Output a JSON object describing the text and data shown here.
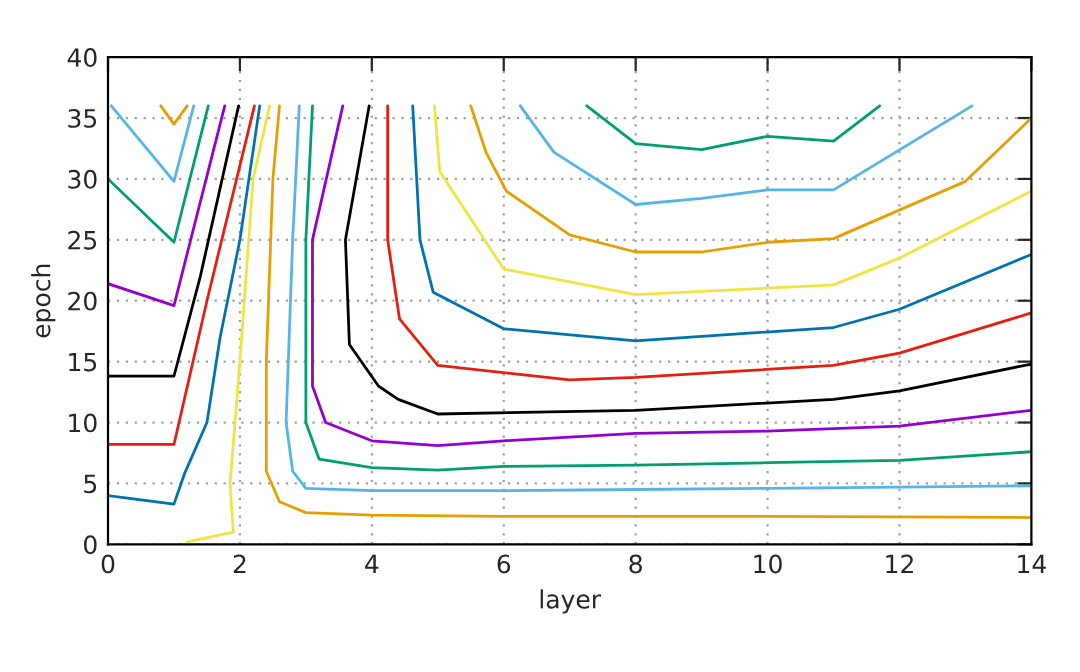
{
  "chart_data": {
    "type": "line",
    "xlabel": "layer",
    "ylabel": "epoch",
    "xlim": [
      0,
      14
    ],
    "ylim": [
      0,
      40
    ],
    "xticks": [
      0,
      2,
      4,
      6,
      8,
      10,
      12,
      14
    ],
    "yticks": [
      0,
      5,
      10,
      15,
      20,
      25,
      30,
      35,
      40
    ],
    "grid": true,
    "series": [
      {
        "color": "#e69f00",
        "x": [
          0.8,
          1,
          1.2
        ],
        "values": [
          36,
          34.5,
          36
        ]
      },
      {
        "color": "#56b4e9",
        "x": [
          0.05,
          1,
          1.3
        ],
        "values": [
          36,
          29.8,
          36
        ]
      },
      {
        "color": "#009e73",
        "x": [
          0,
          1,
          1.52
        ],
        "values": [
          30,
          24.8,
          36
        ]
      },
      {
        "color": "#9400d3",
        "x": [
          0,
          1,
          1.77
        ],
        "values": [
          21.4,
          19.6,
          36
        ]
      },
      {
        "color": "#000000",
        "x": [
          0,
          1,
          1.4,
          1.98
        ],
        "values": [
          13.8,
          13.8,
          22,
          36
        ]
      },
      {
        "color": "#e51e10",
        "x": [
          0,
          1,
          1.5,
          2.22
        ],
        "values": [
          8.2,
          8.2,
          20,
          36
        ]
      },
      {
        "color": "#0072b2",
        "x": [
          0,
          1,
          1.16,
          1.5,
          1.7,
          2.0,
          2.3
        ],
        "values": [
          4,
          3.3,
          5.8,
          10,
          17,
          25,
          36
        ]
      },
      {
        "color": "#f0e442",
        "x": [
          1.2,
          1.9,
          1.85,
          2.0,
          2.2,
          2.45
        ],
        "values": [
          0.2,
          1,
          5,
          15,
          30,
          36
        ]
      },
      {
        "color": "#e69f00",
        "x": [
          14,
          10,
          6,
          4,
          3,
          2.6,
          2.4,
          2.4,
          2.5,
          2.6
        ],
        "values": [
          2.2,
          2.3,
          2.3,
          2.4,
          2.6,
          3.5,
          6,
          15,
          30,
          36
        ]
      },
      {
        "color": "#56b4e9",
        "x": [
          14,
          12,
          10,
          8,
          6,
          4,
          3,
          2.8,
          2.7,
          2.8,
          2.9
        ],
        "values": [
          4.8,
          4.7,
          4.6,
          4.5,
          4.4,
          4.4,
          4.6,
          6,
          10,
          25,
          36
        ]
      },
      {
        "color": "#009e73",
        "x": [
          14,
          12,
          10,
          8,
          6,
          5,
          4,
          3.2,
          3,
          3,
          3.1
        ],
        "values": [
          7.6,
          6.9,
          6.7,
          6.5,
          6.4,
          6.1,
          6.3,
          7,
          10,
          25,
          36
        ]
      },
      {
        "color": "#9400d3",
        "x": [
          14,
          12,
          10,
          8,
          6,
          5,
          4,
          3.3,
          3.1,
          3.1,
          3.56
        ],
        "values": [
          11,
          9.7,
          9.3,
          9.1,
          8.5,
          8.1,
          8.5,
          10,
          13,
          25,
          36
        ]
      },
      {
        "color": "#000000",
        "x": [
          14,
          12,
          11,
          8,
          5,
          4.4,
          4.1,
          3.66,
          3.6,
          3.96
        ],
        "values": [
          14.8,
          12.6,
          11.9,
          11,
          10.7,
          11.9,
          13,
          16.4,
          25,
          36
        ]
      },
      {
        "color": "#e51e10",
        "x": [
          14,
          12,
          11,
          8,
          7,
          5,
          4.42,
          4.24,
          4.24
        ],
        "values": [
          19,
          15.7,
          14.7,
          13.7,
          13.5,
          14.7,
          18.5,
          25,
          36
        ]
      },
      {
        "color": "#0072b2",
        "x": [
          14,
          12,
          11,
          8,
          6,
          4.93,
          4.73,
          4.62
        ],
        "values": [
          23.8,
          19.3,
          17.8,
          16.7,
          17.7,
          20.7,
          25,
          36
        ]
      },
      {
        "color": "#f0e442",
        "x": [
          14,
          12,
          11,
          8,
          6,
          5.03,
          4.95
        ],
        "values": [
          29,
          23.5,
          21.3,
          20.5,
          22.6,
          30.6,
          36
        ]
      },
      {
        "color": "#e69f00",
        "x": [
          14,
          13,
          11,
          10,
          9,
          8,
          7,
          6.04,
          5.73,
          5.5
        ],
        "values": [
          35,
          29.8,
          25.1,
          24.8,
          24,
          24,
          25.4,
          29,
          32.2,
          36
        ]
      },
      {
        "color": "#56b4e9",
        "x": [
          13.1,
          11,
          10,
          9,
          8,
          6.76,
          6.25
        ],
        "values": [
          36,
          29.1,
          29.1,
          28.4,
          27.9,
          32.2,
          36
        ]
      },
      {
        "color": "#009e73",
        "x": [
          11.7,
          11,
          10,
          9,
          8,
          7.26
        ],
        "values": [
          36,
          33.1,
          33.5,
          32.4,
          32.9,
          36
        ]
      }
    ]
  }
}
